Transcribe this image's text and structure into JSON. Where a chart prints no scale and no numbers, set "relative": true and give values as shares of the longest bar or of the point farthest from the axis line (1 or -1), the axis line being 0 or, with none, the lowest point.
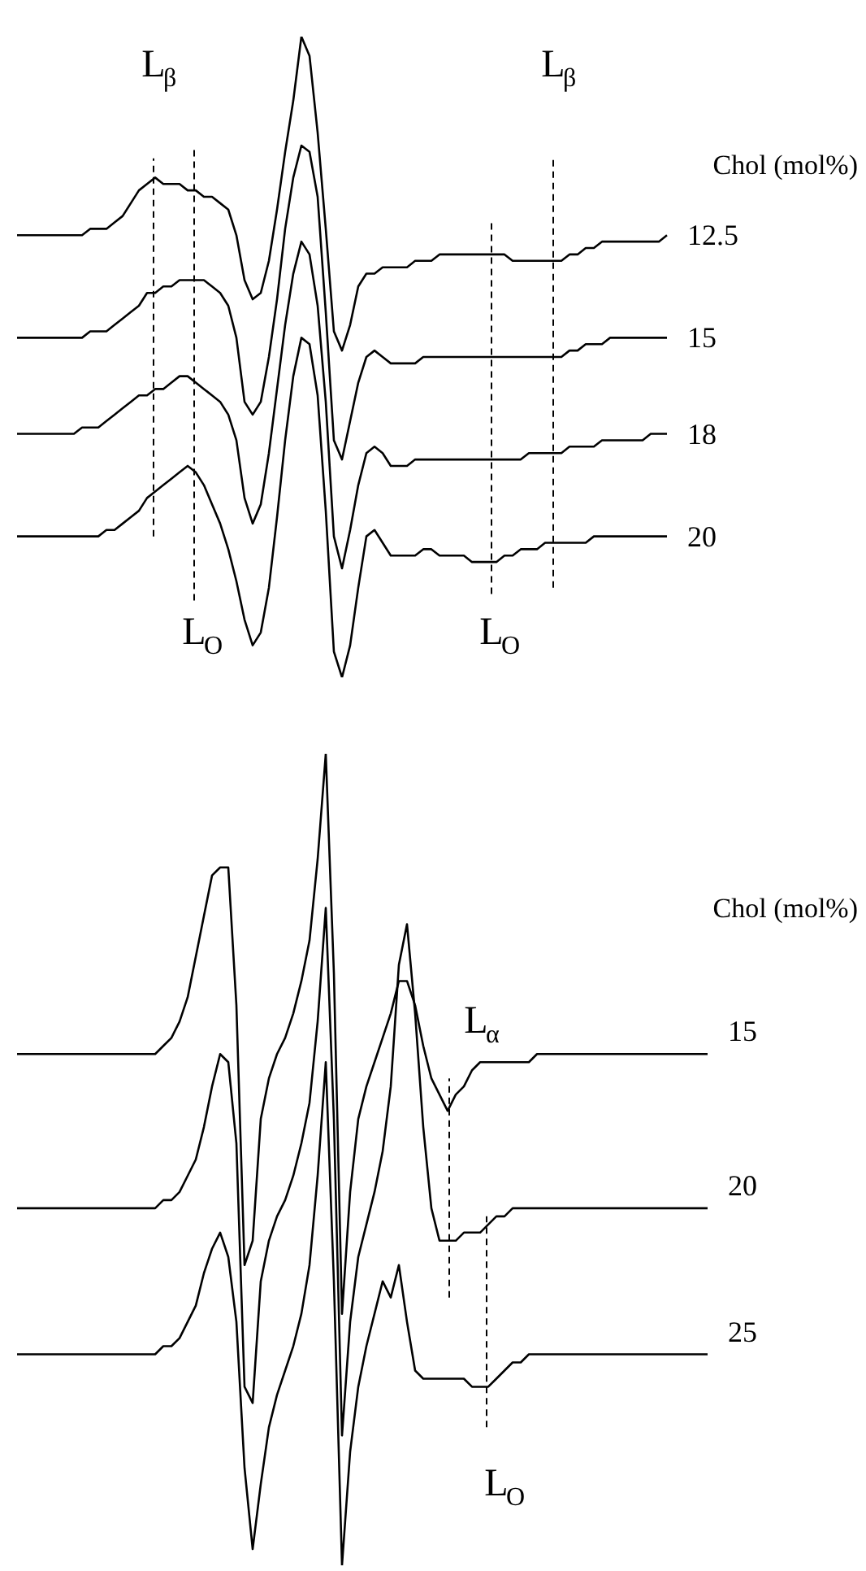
{
  "chart_data": [
    {
      "type": "line",
      "relative": true,
      "legend_title": "Chol (mol%)",
      "categories": [
        null,
        null,
        null,
        null,
        null,
        null,
        null,
        null,
        null,
        null,
        null,
        null,
        null,
        null,
        null,
        null,
        null,
        null,
        null,
        null,
        null,
        null,
        null,
        null,
        null,
        null,
        null,
        null,
        null,
        null,
        null,
        null,
        null,
        null,
        null,
        null,
        null,
        null,
        null,
        null,
        null,
        null,
        null,
        null,
        null,
        null,
        null,
        null,
        null,
        null,
        null,
        null,
        null,
        null,
        null,
        null,
        null,
        null,
        null,
        null,
        null,
        null,
        null,
        null,
        null,
        null,
        null,
        null,
        null,
        null,
        null,
        null,
        null,
        null,
        null,
        null,
        null,
        null,
        null,
        null,
        null
      ],
      "series": [
        {
          "name": "12.5",
          "color": "#000000",
          "values": [
            0.69,
            0.69,
            0.69,
            0.69,
            0.69,
            0.69,
            0.69,
            0.69,
            0.69,
            0.7,
            0.7,
            0.7,
            0.71,
            0.72,
            0.74,
            0.76,
            0.77,
            0.78,
            0.77,
            0.77,
            0.77,
            0.76,
            0.76,
            0.75,
            0.75,
            0.74,
            0.73,
            0.69,
            0.62,
            0.59,
            0.6,
            0.65,
            0.73,
            0.82,
            0.9,
            1.0,
            0.97,
            0.85,
            0.7,
            0.54,
            0.51,
            0.55,
            0.61,
            0.63,
            0.63,
            0.64,
            0.64,
            0.64,
            0.64,
            0.65,
            0.65,
            0.65,
            0.66,
            0.66,
            0.66,
            0.66,
            0.66,
            0.66,
            0.66,
            0.66,
            0.66,
            0.65,
            0.65,
            0.65,
            0.65,
            0.65,
            0.65,
            0.65,
            0.66,
            0.66,
            0.67,
            0.67,
            0.68,
            0.68,
            0.68,
            0.68,
            0.68,
            0.68,
            0.68,
            0.68,
            0.69
          ]
        },
        {
          "name": "15",
          "color": "#000000",
          "values": [
            0.53,
            0.53,
            0.53,
            0.53,
            0.53,
            0.53,
            0.53,
            0.53,
            0.53,
            0.54,
            0.54,
            0.54,
            0.55,
            0.56,
            0.57,
            0.58,
            0.6,
            0.6,
            0.61,
            0.61,
            0.62,
            0.62,
            0.62,
            0.62,
            0.61,
            0.6,
            0.58,
            0.53,
            0.43,
            0.41,
            0.43,
            0.5,
            0.59,
            0.7,
            0.78,
            0.83,
            0.82,
            0.75,
            0.57,
            0.37,
            0.34,
            0.4,
            0.46,
            0.5,
            0.51,
            0.5,
            0.49,
            0.49,
            0.49,
            0.49,
            0.5,
            0.5,
            0.5,
            0.5,
            0.5,
            0.5,
            0.5,
            0.5,
            0.5,
            0.5,
            0.5,
            0.5,
            0.5,
            0.5,
            0.5,
            0.5,
            0.5,
            0.5,
            0.51,
            0.51,
            0.52,
            0.52,
            0.52,
            0.53,
            0.53,
            0.53,
            0.53,
            0.53,
            0.53,
            0.53,
            0.53
          ]
        },
        {
          "name": "18",
          "color": "#000000",
          "values": [
            0.38,
            0.38,
            0.38,
            0.38,
            0.38,
            0.38,
            0.38,
            0.38,
            0.39,
            0.39,
            0.39,
            0.4,
            0.41,
            0.42,
            0.43,
            0.44,
            0.44,
            0.45,
            0.45,
            0.46,
            0.47,
            0.47,
            0.46,
            0.45,
            0.44,
            0.43,
            0.41,
            0.37,
            0.28,
            0.24,
            0.27,
            0.35,
            0.45,
            0.55,
            0.63,
            0.68,
            0.66,
            0.58,
            0.43,
            0.22,
            0.17,
            0.23,
            0.3,
            0.35,
            0.36,
            0.35,
            0.33,
            0.33,
            0.33,
            0.34,
            0.34,
            0.34,
            0.34,
            0.34,
            0.34,
            0.34,
            0.34,
            0.34,
            0.34,
            0.34,
            0.34,
            0.34,
            0.34,
            0.35,
            0.35,
            0.35,
            0.35,
            0.35,
            0.36,
            0.36,
            0.36,
            0.36,
            0.37,
            0.37,
            0.37,
            0.37,
            0.37,
            0.37,
            0.38,
            0.38,
            0.38
          ]
        },
        {
          "name": "20",
          "color": "#000000",
          "values": [
            0.22,
            0.22,
            0.22,
            0.22,
            0.22,
            0.22,
            0.22,
            0.22,
            0.22,
            0.22,
            0.22,
            0.23,
            0.23,
            0.24,
            0.25,
            0.26,
            0.28,
            0.29,
            0.3,
            0.31,
            0.32,
            0.33,
            0.32,
            0.3,
            0.27,
            0.24,
            0.2,
            0.15,
            0.09,
            0.05,
            0.07,
            0.14,
            0.25,
            0.37,
            0.47,
            0.53,
            0.52,
            0.44,
            0.26,
            0.04,
            0,
            0.05,
            0.14,
            0.22,
            0.23,
            0.21,
            0.19,
            0.19,
            0.19,
            0.19,
            0.2,
            0.2,
            0.19,
            0.19,
            0.19,
            0.19,
            0.18,
            0.18,
            0.18,
            0.18,
            0.19,
            0.19,
            0.2,
            0.2,
            0.2,
            0.21,
            0.21,
            0.21,
            0.21,
            0.21,
            0.21,
            0.22,
            0.22,
            0.22,
            0.22,
            0.22,
            0.22,
            0.22,
            0.22,
            0.22,
            0.22
          ]
        }
      ],
      "annotations": [
        "L$_{β}$",
        "L$_{O}$",
        "L$_{β}$",
        "L$_{O}$"
      ]
    },
    {
      "type": "line",
      "relative": true,
      "legend_title": "Chol (mol%)",
      "categories": [
        null,
        null,
        null,
        null,
        null,
        null,
        null,
        null,
        null,
        null,
        null,
        null,
        null,
        null,
        null,
        null,
        null,
        null,
        null,
        null,
        null,
        null,
        null,
        null,
        null,
        null,
        null,
        null,
        null,
        null,
        null,
        null,
        null,
        null,
        null,
        null,
        null,
        null,
        null,
        null,
        null,
        null,
        null,
        null,
        null,
        null,
        null,
        null,
        null,
        null,
        null,
        null,
        null,
        null,
        null,
        null,
        null,
        null,
        null,
        null,
        null,
        null,
        null,
        null,
        null,
        null,
        null,
        null,
        null,
        null,
        null,
        null,
        null,
        null,
        null,
        null,
        null,
        null,
        null,
        null,
        null,
        null,
        null,
        null,
        null,
        null
      ],
      "series": [
        {
          "name": "15",
          "color": "#000000",
          "values": [
            0.63,
            0.63,
            0.63,
            0.63,
            0.63,
            0.63,
            0.63,
            0.63,
            0.63,
            0.63,
            0.63,
            0.63,
            0.63,
            0.63,
            0.63,
            0.63,
            0.63,
            0.63,
            0.64,
            0.65,
            0.67,
            0.7,
            0.75,
            0.8,
            0.85,
            0.86,
            0.86,
            0.69,
            0.37,
            0.4,
            0.55,
            0.6,
            0.63,
            0.65,
            0.68,
            0.72,
            0.77,
            0.87,
            1.0,
            0.73,
            0.31,
            0.46,
            0.55,
            0.59,
            0.62,
            0.65,
            0.68,
            0.72,
            0.72,
            0.69,
            0.64,
            0.6,
            0.58,
            0.56,
            0.58,
            0.59,
            0.61,
            0.62,
            0.62,
            0.62,
            0.62,
            0.62,
            0.62,
            0.62,
            0.63,
            0.63,
            0.63,
            0.63,
            0.63,
            0.63,
            0.63,
            0.63,
            0.63,
            0.63,
            0.63,
            0.63,
            0.63,
            0.63,
            0.63,
            0.63,
            0.63,
            0.63,
            0.63,
            0.63,
            0.63,
            0.63
          ]
        },
        {
          "name": "20",
          "color": "#000000",
          "values": [
            0.44,
            0.44,
            0.44,
            0.44,
            0.44,
            0.44,
            0.44,
            0.44,
            0.44,
            0.44,
            0.44,
            0.44,
            0.44,
            0.44,
            0.44,
            0.44,
            0.44,
            0.44,
            0.45,
            0.45,
            0.46,
            0.48,
            0.5,
            0.54,
            0.59,
            0.63,
            0.62,
            0.52,
            0.22,
            0.2,
            0.35,
            0.4,
            0.43,
            0.45,
            0.48,
            0.52,
            0.57,
            0.67,
            0.81,
            0.55,
            0.16,
            0.3,
            0.38,
            0.42,
            0.46,
            0.51,
            0.59,
            0.74,
            0.79,
            0.68,
            0.54,
            0.44,
            0.4,
            0.4,
            0.4,
            0.41,
            0.41,
            0.41,
            0.42,
            0.43,
            0.43,
            0.44,
            0.44,
            0.44,
            0.44,
            0.44,
            0.44,
            0.44,
            0.44,
            0.44,
            0.44,
            0.44,
            0.44,
            0.44,
            0.44,
            0.44,
            0.44,
            0.44,
            0.44,
            0.44,
            0.44,
            0.44,
            0.44,
            0.44,
            0.44,
            0.44
          ]
        },
        {
          "name": "25",
          "color": "#000000",
          "values": [
            0.26,
            0.26,
            0.26,
            0.26,
            0.26,
            0.26,
            0.26,
            0.26,
            0.26,
            0.26,
            0.26,
            0.26,
            0.26,
            0.26,
            0.26,
            0.26,
            0.26,
            0.26,
            0.27,
            0.27,
            0.28,
            0.3,
            0.32,
            0.36,
            0.39,
            0.41,
            0.38,
            0.3,
            0.12,
            0.02,
            0.1,
            0.17,
            0.21,
            0.24,
            0.27,
            0.31,
            0.37,
            0.48,
            0.62,
            0.35,
            0,
            0.14,
            0.22,
            0.27,
            0.31,
            0.35,
            0.33,
            0.37,
            0.3,
            0.24,
            0.23,
            0.23,
            0.23,
            0.23,
            0.23,
            0.23,
            0.22,
            0.22,
            0.22,
            0.23,
            0.24,
            0.25,
            0.25,
            0.26,
            0.26,
            0.26,
            0.26,
            0.26,
            0.26,
            0.26,
            0.26,
            0.26,
            0.26,
            0.26,
            0.26,
            0.26,
            0.26,
            0.26,
            0.26,
            0.26,
            0.26,
            0.26,
            0.26,
            0.26,
            0.26,
            0.26
          ]
        }
      ],
      "annotations": [
        "L$_{α}$",
        "L$_{O}$"
      ]
    }
  ]
}
